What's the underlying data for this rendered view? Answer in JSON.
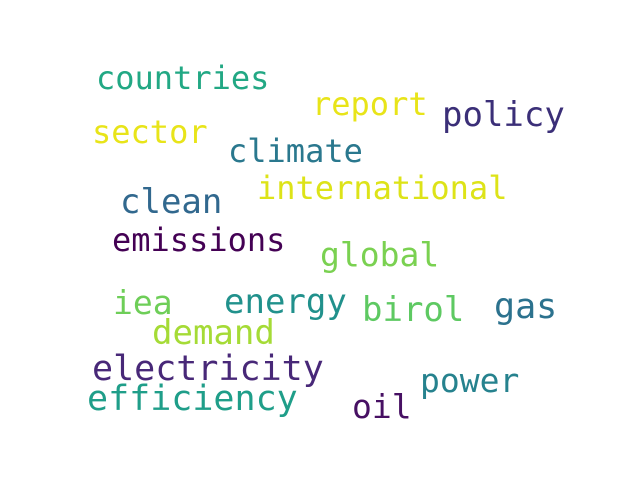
{
  "words": [
    {
      "text": "countries",
      "color": "#22a884"
    },
    {
      "text": "report",
      "color": "#e8e419"
    },
    {
      "text": "policy",
      "color": "#3b2f78"
    },
    {
      "text": "sector",
      "color": "#e8e419"
    },
    {
      "text": "climate",
      "color": "#2a788e"
    },
    {
      "text": "international",
      "color": "#dde318"
    },
    {
      "text": "clean",
      "color": "#31688e"
    },
    {
      "text": "emissions",
      "color": "#440154"
    },
    {
      "text": "global",
      "color": "#7ad151"
    },
    {
      "text": "iea",
      "color": "#6ece58"
    },
    {
      "text": "energy",
      "color": "#21918c"
    },
    {
      "text": "birol",
      "color": "#5ec962"
    },
    {
      "text": "gas",
      "color": "#2c728e"
    },
    {
      "text": "demand",
      "color": "#a5db36"
    },
    {
      "text": "electricity",
      "color": "#482878"
    },
    {
      "text": "power",
      "color": "#26828e"
    },
    {
      "text": "efficiency",
      "color": "#1f9e89"
    },
    {
      "text": "oil",
      "color": "#471063"
    }
  ]
}
